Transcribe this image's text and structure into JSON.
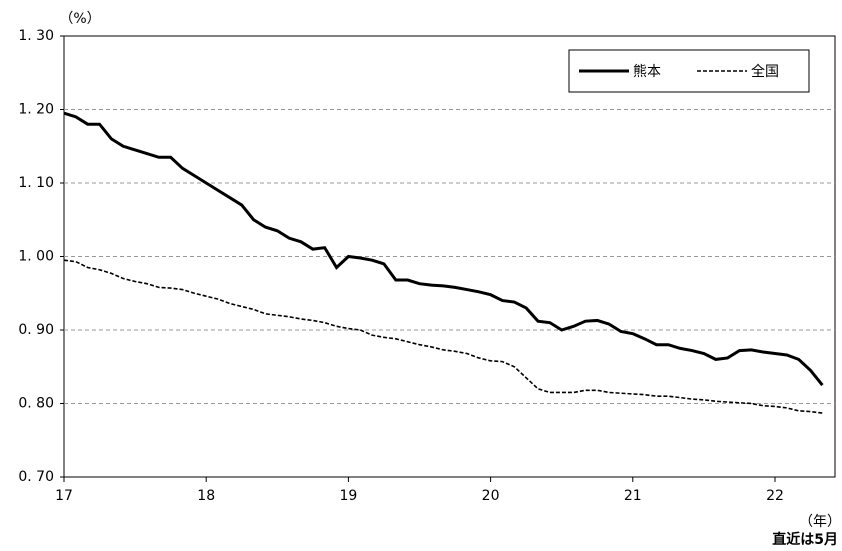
{
  "chart_data": {
    "type": "line",
    "y_unit": "（%）",
    "x_unit": "（年）",
    "note": "直近は5月",
    "categories": [
      "17",
      null,
      null,
      null,
      null,
      null,
      null,
      null,
      null,
      null,
      null,
      null,
      "18",
      null,
      null,
      null,
      null,
      null,
      null,
      null,
      null,
      null,
      null,
      null,
      "19",
      null,
      null,
      null,
      null,
      null,
      null,
      null,
      null,
      null,
      null,
      null,
      "20",
      null,
      null,
      null,
      null,
      null,
      null,
      null,
      null,
      null,
      null,
      null,
      "21",
      null,
      null,
      null,
      null,
      null,
      null,
      null,
      null,
      null,
      null,
      null,
      "22",
      null,
      null,
      null,
      null
    ],
    "series": [
      {
        "name": "熊本",
        "color": "#000000",
        "dash": "solid",
        "values": [
          1.195,
          1.19,
          1.18,
          1.18,
          1.16,
          1.15,
          1.145,
          1.14,
          1.135,
          1.135,
          1.12,
          1.11,
          1.1,
          1.09,
          1.08,
          1.07,
          1.05,
          1.04,
          1.035,
          1.025,
          1.02,
          1.01,
          1.012,
          0.985,
          1.0,
          0.998,
          0.995,
          0.99,
          0.968,
          0.968,
          0.963,
          0.961,
          0.96,
          0.958,
          0.955,
          0.952,
          0.948,
          0.94,
          0.938,
          0.93,
          0.912,
          0.91,
          0.9,
          0.905,
          0.912,
          0.913,
          0.908,
          0.898,
          0.895,
          0.888,
          0.88,
          0.88,
          0.875,
          0.872,
          0.868,
          0.86,
          0.862,
          0.872,
          0.873,
          0.87,
          0.868,
          0.866,
          0.86,
          0.845,
          0.825
        ]
      },
      {
        "name": "全国",
        "color": "#000000",
        "dash": "dashed",
        "values": [
          0.995,
          0.993,
          0.985,
          0.982,
          0.977,
          0.97,
          0.966,
          0.963,
          0.958,
          0.957,
          0.955,
          0.95,
          0.946,
          0.942,
          0.936,
          0.932,
          0.928,
          0.922,
          0.92,
          0.918,
          0.915,
          0.913,
          0.91,
          0.905,
          0.902,
          0.9,
          0.893,
          0.89,
          0.888,
          0.884,
          0.88,
          0.877,
          0.873,
          0.871,
          0.868,
          0.862,
          0.858,
          0.857,
          0.85,
          0.835,
          0.82,
          0.815,
          0.815,
          0.815,
          0.818,
          0.818,
          0.815,
          0.814,
          0.813,
          0.812,
          0.81,
          0.81,
          0.808,
          0.806,
          0.805,
          0.803,
          0.802,
          0.801,
          0.8,
          0.797,
          0.796,
          0.794,
          0.79,
          0.789,
          0.787
        ]
      }
    ],
    "ylim": [
      0.7,
      1.3
    ],
    "yticks": [
      {
        "value": 0.7,
        "label": "0. 70"
      },
      {
        "value": 0.8,
        "label": "0. 80"
      },
      {
        "value": 0.9,
        "label": "0. 90"
      },
      {
        "value": 1.0,
        "label": "1. 00"
      },
      {
        "value": 1.1,
        "label": "1. 10"
      },
      {
        "value": 1.2,
        "label": "1. 20"
      },
      {
        "value": 1.3,
        "label": "1. 30"
      }
    ],
    "grid": true,
    "legend": "top-right"
  }
}
